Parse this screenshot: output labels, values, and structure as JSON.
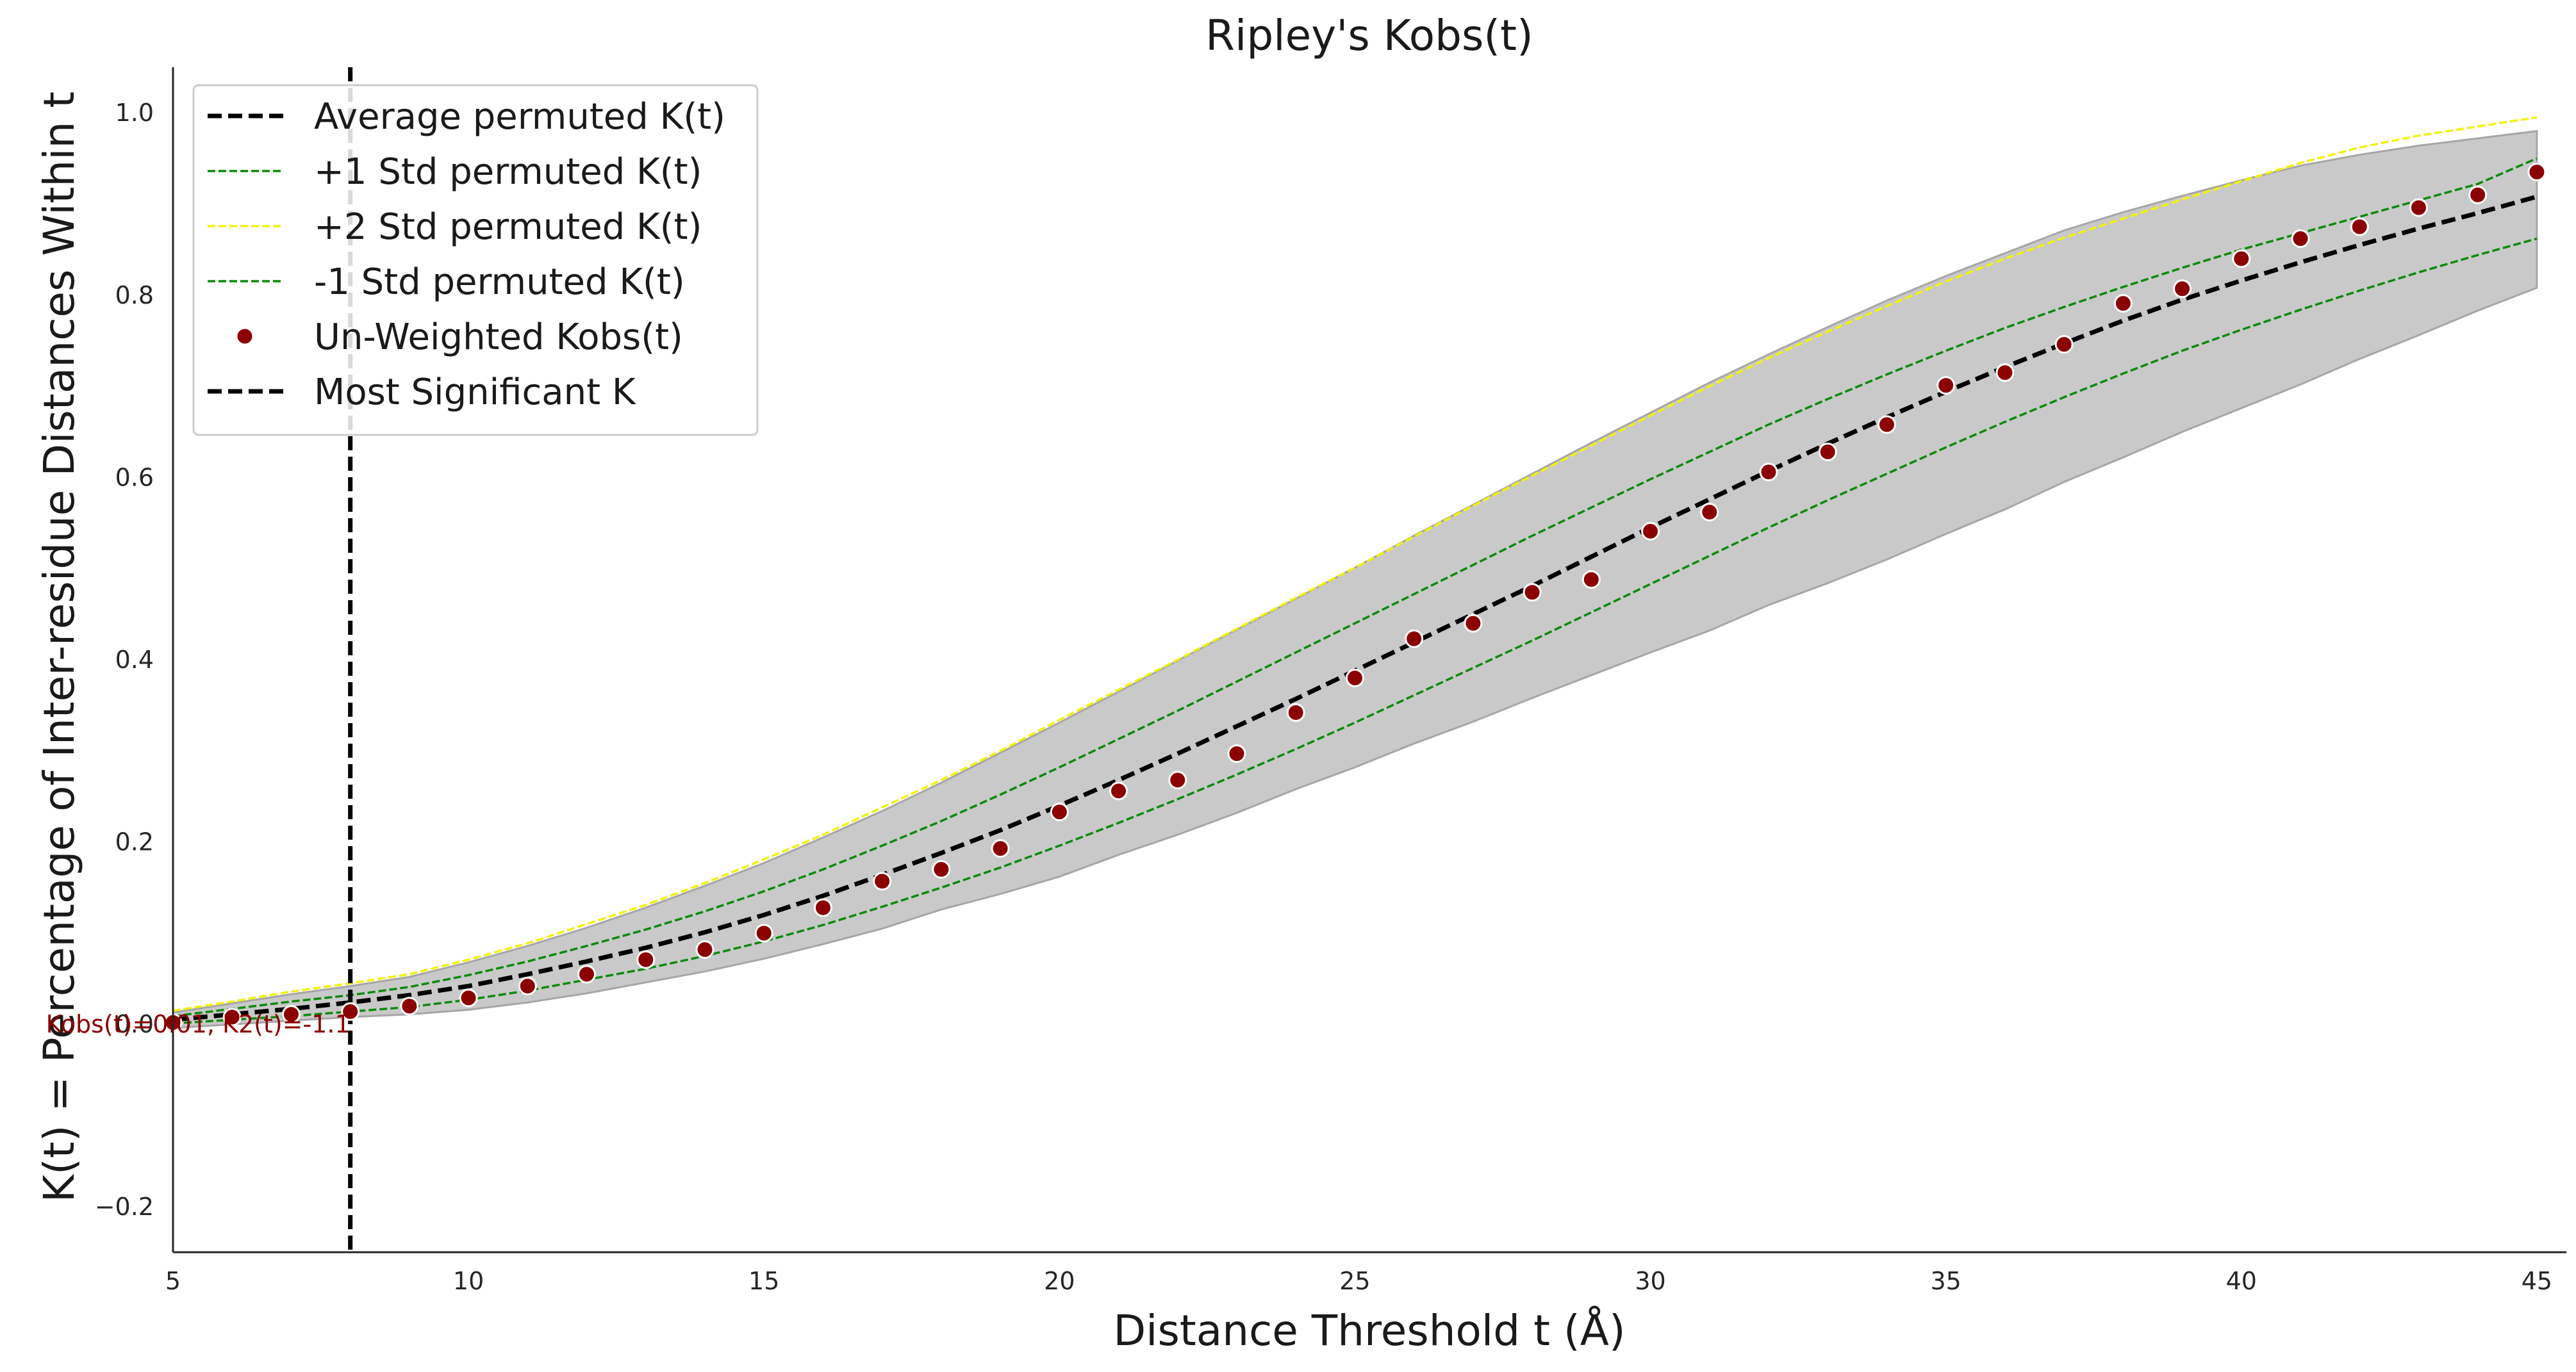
{
  "chart_data": {
    "type": "line",
    "title": "Ripley's Kobs(t)",
    "xlabel": "Distance Threshold t (Å)",
    "ylabel": "K(t) = Percentage of Inter-residue Distances Within t",
    "xlim": [
      5,
      45.5
    ],
    "ylim": [
      -0.25,
      1.05
    ],
    "x_ticks": [
      5,
      10,
      15,
      20,
      25,
      30,
      35,
      40,
      45
    ],
    "y_ticks": [
      -0.2,
      0.0,
      0.2,
      0.4,
      0.6,
      0.8,
      1.0
    ],
    "y_tick_labels": [
      "−0.2",
      "0.0",
      "0.2",
      "0.4",
      "0.6",
      "0.8",
      "1.0"
    ],
    "grid": false,
    "legend_position": "top-left",
    "x": [
      5,
      6,
      7,
      8,
      9,
      10,
      11,
      12,
      13,
      14,
      15,
      16,
      17,
      18,
      19,
      20,
      21,
      22,
      23,
      24,
      25,
      26,
      27,
      28,
      29,
      30,
      31,
      32,
      33,
      34,
      35,
      36,
      37,
      38,
      39,
      40,
      41,
      42,
      43,
      44,
      45
    ],
    "series": [
      {
        "name": "Average permuted K(t)",
        "style": "dashed-thick",
        "color": "#000000",
        "values": [
          0.005,
          0.011,
          0.017,
          0.024,
          0.032,
          0.042,
          0.055,
          0.069,
          0.084,
          0.101,
          0.12,
          0.141,
          0.164,
          0.188,
          0.213,
          0.24,
          0.268,
          0.297,
          0.327,
          0.357,
          0.388,
          0.419,
          0.45,
          0.481,
          0.513,
          0.545,
          0.576,
          0.607,
          0.637,
          0.666,
          0.694,
          0.721,
          0.747,
          0.772,
          0.795,
          0.816,
          0.836,
          0.855,
          0.873,
          0.89,
          0.908
        ]
      },
      {
        "name": "+1 Std permuted K(t)",
        "style": "dashed-thin",
        "color": "#0a8a0a",
        "values": [
          0.009,
          0.017,
          0.025,
          0.032,
          0.041,
          0.054,
          0.069,
          0.086,
          0.104,
          0.124,
          0.146,
          0.17,
          0.196,
          0.223,
          0.252,
          0.282,
          0.313,
          0.344,
          0.376,
          0.408,
          0.44,
          0.472,
          0.504,
          0.536,
          0.567,
          0.598,
          0.628,
          0.658,
          0.686,
          0.713,
          0.739,
          0.764,
          0.787,
          0.809,
          0.83,
          0.85,
          0.868,
          0.886,
          0.904,
          0.922,
          0.95
        ]
      },
      {
        "name": "+2 Std permuted K(t)",
        "style": "dashed-thin",
        "color": "#f2f20a",
        "values": [
          0.015,
          0.025,
          0.036,
          0.045,
          0.055,
          0.071,
          0.089,
          0.11,
          0.131,
          0.155,
          0.181,
          0.208,
          0.238,
          0.268,
          0.3,
          0.334,
          0.367,
          0.4,
          0.434,
          0.468,
          0.501,
          0.535,
          0.569,
          0.602,
          0.635,
          0.668,
          0.7,
          0.731,
          0.76,
          0.788,
          0.815,
          0.84,
          0.863,
          0.884,
          0.905,
          0.925,
          0.945,
          0.962,
          0.975,
          0.985,
          0.995
        ]
      },
      {
        "name": "-1 Std permuted K(t)",
        "style": "dashed-thin",
        "color": "#0a8a0a",
        "values": [
          0.001,
          0.005,
          0.009,
          0.014,
          0.019,
          0.027,
          0.037,
          0.049,
          0.061,
          0.075,
          0.091,
          0.109,
          0.129,
          0.15,
          0.172,
          0.196,
          0.221,
          0.247,
          0.274,
          0.302,
          0.331,
          0.361,
          0.391,
          0.421,
          0.452,
          0.483,
          0.514,
          0.545,
          0.575,
          0.604,
          0.633,
          0.661,
          0.688,
          0.714,
          0.739,
          0.762,
          0.784,
          0.805,
          0.825,
          0.844,
          0.862
        ]
      },
      {
        "name": "Un-Weighted Kobs(t)",
        "style": "scatter",
        "color": "#8b0000",
        "values": [
          0.002,
          0.008,
          0.011,
          0.014,
          0.02,
          0.029,
          0.042,
          0.055,
          0.071,
          0.082,
          0.1,
          0.128,
          0.157,
          0.17,
          0.193,
          0.233,
          0.256,
          0.268,
          0.297,
          0.342,
          0.38,
          0.423,
          0.44,
          0.474,
          0.488,
          0.541,
          0.562,
          0.606,
          0.628,
          0.658,
          0.701,
          0.715,
          0.746,
          0.791,
          0.807,
          0.84,
          0.862,
          0.875,
          0.896,
          0.91,
          0.935
        ]
      },
      {
        "name": "Most Significant K",
        "style": "vline",
        "color": "#000000",
        "x_value": 8
      }
    ],
    "band": {
      "upper": [
        0.013,
        0.023,
        0.033,
        0.042,
        0.052,
        0.068,
        0.086,
        0.106,
        0.128,
        0.152,
        0.177,
        0.205,
        0.234,
        0.265,
        0.298,
        0.331,
        0.365,
        0.399,
        0.433,
        0.467,
        0.501,
        0.536,
        0.57,
        0.604,
        0.638,
        0.671,
        0.704,
        0.735,
        0.765,
        0.794,
        0.821,
        0.846,
        0.871,
        0.891,
        0.909,
        0.926,
        0.942,
        0.954,
        0.964,
        0.972,
        0.98
      ],
      "lower": [
        -0.004,
        0.0,
        0.004,
        0.008,
        0.011,
        0.016,
        0.024,
        0.034,
        0.046,
        0.058,
        0.072,
        0.088,
        0.105,
        0.126,
        0.143,
        0.162,
        0.186,
        0.208,
        0.232,
        0.258,
        0.282,
        0.308,
        0.332,
        0.358,
        0.383,
        0.408,
        0.432,
        0.46,
        0.484,
        0.51,
        0.538,
        0.565,
        0.595,
        0.622,
        0.65,
        0.676,
        0.702,
        0.73,
        0.756,
        0.783,
        0.808
      ]
    },
    "annotation": {
      "text": "Kobs(t)=0.01, K2(t)=-1.1",
      "x": 8,
      "y": 0.0,
      "color": "#8b0000"
    }
  }
}
